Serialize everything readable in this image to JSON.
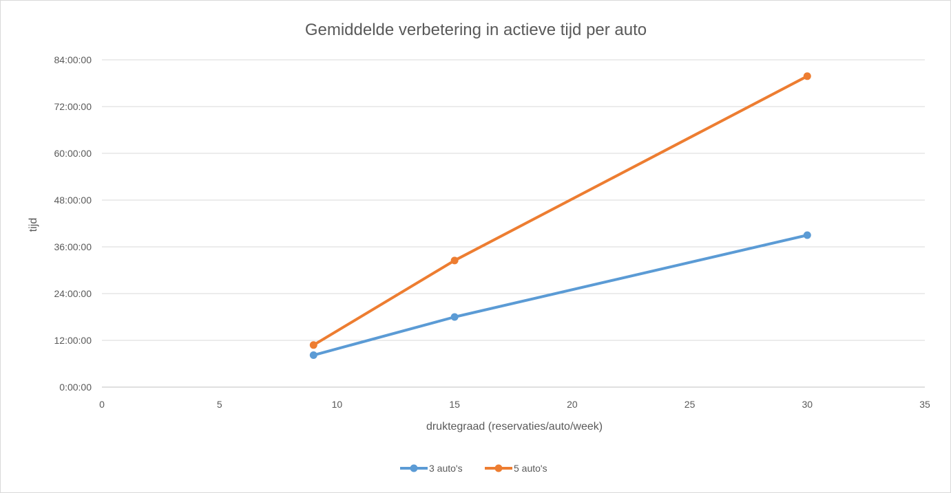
{
  "chart_data": {
    "type": "line",
    "title": "Gemiddelde verbetering in actieve tijd per auto",
    "xlabel": "druktegraad (reservaties/auto/week)",
    "ylabel": "tijd",
    "xlim": [
      0,
      35
    ],
    "ylim_hours": [
      0,
      84
    ],
    "x_ticks": [
      0,
      5,
      10,
      15,
      20,
      25,
      30,
      35
    ],
    "x_tick_labels": [
      "0",
      "5",
      "10",
      "15",
      "20",
      "25",
      "30",
      "35"
    ],
    "y_ticks_hours": [
      0,
      12,
      24,
      36,
      48,
      60,
      72,
      84
    ],
    "y_tick_labels": [
      "0:00:00",
      "12:00:00",
      "24:00:00",
      "36:00:00",
      "48:00:00",
      "60:00:00",
      "72:00:00",
      "84:00:00"
    ],
    "grid": true,
    "legend_position": "bottom",
    "series": [
      {
        "name": "3 auto's",
        "color": "#5b9bd5",
        "x": [
          9,
          15,
          30
        ],
        "y_hours": [
          8.2,
          18.0,
          39.0
        ]
      },
      {
        "name": "5 auto's",
        "color": "#ed7d31",
        "x": [
          9,
          15,
          30
        ],
        "y_hours": [
          10.8,
          32.5,
          79.8
        ]
      }
    ]
  }
}
